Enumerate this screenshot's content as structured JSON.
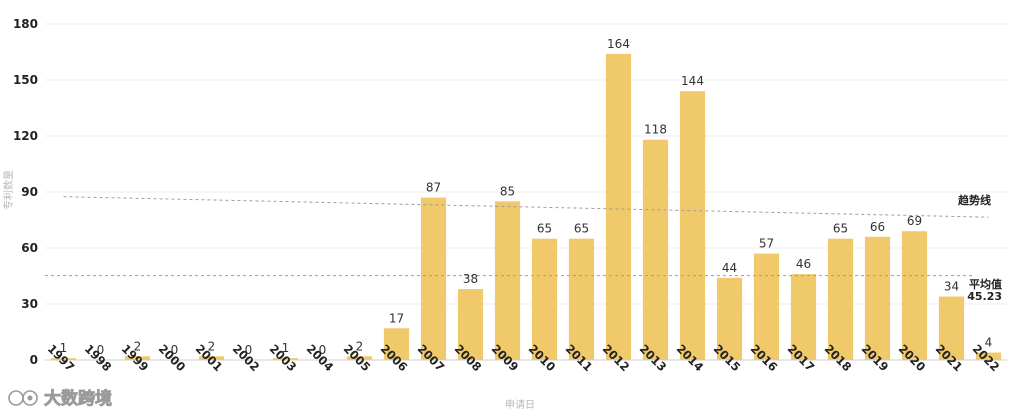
{
  "chart_data": {
    "type": "bar",
    "categories": [
      "1997",
      "1998",
      "1999",
      "2000",
      "2001",
      "2002",
      "2003",
      "2004",
      "2005",
      "2006",
      "2007",
      "2008",
      "2009",
      "2010",
      "2011",
      "2012",
      "2013",
      "2014",
      "2015",
      "2016",
      "2017",
      "2018",
      "2019",
      "2020",
      "2021",
      "2022"
    ],
    "values": [
      1,
      0,
      2,
      0,
      2,
      0,
      1,
      0,
      2,
      17,
      87,
      38,
      85,
      65,
      65,
      164,
      118,
      144,
      44,
      57,
      46,
      65,
      66,
      69,
      34,
      4
    ],
    "xlabel": "申请日",
    "ylabel": "专利数量",
    "ylim": [
      0,
      180
    ],
    "yticks": [
      0,
      30,
      60,
      90,
      120,
      150,
      180
    ],
    "grid": true,
    "bar_color": "#f0c96a",
    "average": {
      "label": "平均值",
      "value_label": "45.23",
      "value": 45.23
    },
    "trend": {
      "label": "趋势线",
      "start_value": 87.5,
      "end_value": 76.5
    }
  },
  "watermark": {
    "text": "大数跨境"
  }
}
